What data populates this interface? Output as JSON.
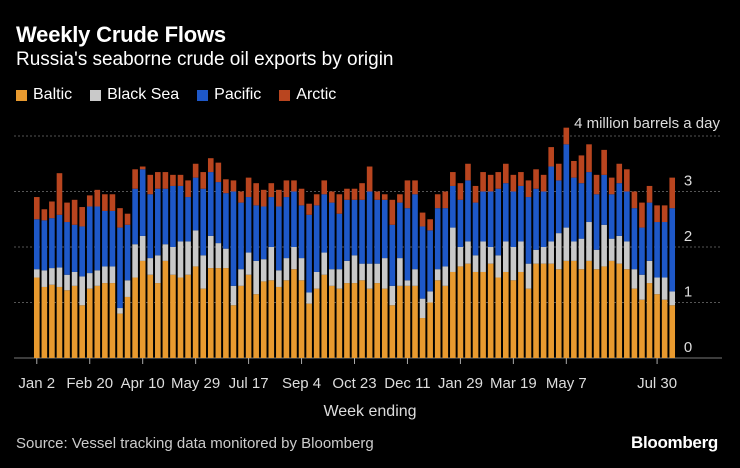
{
  "title": "Weekly Crude Flows",
  "subtitle": "Russia's seaborne crude oil exports by origin",
  "source": "Source: Vessel tracking data monitored by Bloomberg",
  "logo": "Bloomberg",
  "colors": {
    "background": "#000000",
    "Baltic": "#e89a2f",
    "Black Sea": "#c9c9c9",
    "Pacific": "#1e58c8",
    "Arctic": "#b9451f",
    "grid": "#555555"
  },
  "chart_data": {
    "type": "bar",
    "stacked": true,
    "xlabel": "Week ending",
    "ylabel": "",
    "y_unit_label": "4 million barrels a day",
    "ylim": [
      0,
      4
    ],
    "yticks": [
      0,
      1,
      2,
      3,
      4
    ],
    "ytick_labels": [
      "0",
      "1",
      "2",
      "3",
      ""
    ],
    "grid": true,
    "legend_placement": "top-left",
    "x_tick_labels": [
      {
        "index": 0,
        "label": "Jan 2"
      },
      {
        "index": 7,
        "label": "Feb 20"
      },
      {
        "index": 14,
        "label": "Apr 10"
      },
      {
        "index": 21,
        "label": "May 29"
      },
      {
        "index": 28,
        "label": "Jul 17"
      },
      {
        "index": 35,
        "label": "Sep 4"
      },
      {
        "index": 42,
        "label": "Oct 23"
      },
      {
        "index": 49,
        "label": "Dec 11"
      },
      {
        "index": 56,
        "label": "Jan 29"
      },
      {
        "index": 63,
        "label": "Mar 19"
      },
      {
        "index": 70,
        "label": "May 7"
      },
      {
        "index": 82,
        "label": "Jul 30"
      }
    ],
    "series": [
      {
        "name": "Baltic",
        "values": [
          1.45,
          1.28,
          1.32,
          1.28,
          1.22,
          1.3,
          0.95,
          1.25,
          1.3,
          1.35,
          1.35,
          0.8,
          1.1,
          1.45,
          1.75,
          1.5,
          1.35,
          1.75,
          1.5,
          1.45,
          1.5,
          1.65,
          1.25,
          1.62,
          1.62,
          1.62,
          0.95,
          1.3,
          1.5,
          1.15,
          1.38,
          1.4,
          1.28,
          1.4,
          1.6,
          1.4,
          0.98,
          1.25,
          1.5,
          1.3,
          1.25,
          1.35,
          1.35,
          1.4,
          1.25,
          1.35,
          1.25,
          0.95,
          1.3,
          1.3,
          1.3,
          0.72,
          1.0,
          1.4,
          1.3,
          1.55,
          1.65,
          1.7,
          1.55,
          1.55,
          1.7,
          1.45,
          1.55,
          1.4,
          1.55,
          1.25,
          1.7,
          1.7,
          1.7,
          1.6,
          1.75,
          1.75,
          1.6,
          1.75,
          1.6,
          1.65,
          1.75,
          1.7,
          1.6,
          1.25,
          1.05,
          1.35,
          1.15,
          1.05,
          0.95
        ],
        "ids": null
      },
      {
        "name": "Black Sea",
        "values": [
          0.15,
          0.3,
          0.3,
          0.35,
          0.28,
          0.25,
          0.52,
          0.28,
          0.28,
          0.3,
          0.3,
          0.1,
          0.3,
          0.6,
          0.45,
          0.3,
          0.5,
          0.3,
          0.5,
          0.65,
          0.6,
          0.65,
          0.6,
          0.58,
          0.45,
          0.35,
          0.35,
          0.3,
          0.4,
          0.6,
          0.4,
          0.6,
          0.3,
          0.4,
          0.4,
          0.4,
          0.2,
          0.3,
          0.4,
          0.3,
          0.35,
          0.4,
          0.5,
          0.3,
          0.45,
          0.35,
          0.55,
          0.35,
          0.5,
          0.1,
          0.3,
          0.35,
          0.2,
          0.2,
          0.35,
          0.8,
          0.35,
          0.4,
          0.3,
          0.55,
          0.3,
          0.4,
          0.55,
          0.6,
          0.55,
          0.45,
          0.25,
          0.3,
          0.4,
          0.65,
          0.6,
          0.35,
          0.55,
          0.7,
          0.35,
          0.75,
          0.4,
          0.5,
          0.5,
          0.35,
          0.45,
          0.4,
          0.3,
          0.4,
          0.25
        ],
        "ids": null
      },
      {
        "name": "Pacific",
        "values": [
          0.9,
          0.9,
          0.9,
          0.95,
          0.95,
          0.85,
          0.9,
          1.2,
          1.15,
          1.0,
          1.0,
          1.45,
          1.0,
          1.0,
          1.2,
          1.15,
          1.2,
          1.0,
          1.1,
          1.0,
          0.8,
          0.95,
          1.2,
          1.15,
          1.1,
          1.0,
          1.7,
          1.2,
          1.0,
          1.0,
          0.95,
          0.9,
          1.15,
          1.1,
          1.0,
          0.95,
          1.4,
          1.2,
          1.05,
          1.2,
          1.0,
          1.1,
          1.0,
          1.15,
          1.3,
          1.15,
          1.05,
          1.1,
          1.0,
          1.3,
          1.35,
          1.3,
          1.1,
          1.1,
          1.05,
          0.75,
          0.85,
          1.1,
          0.95,
          0.9,
          1.0,
          1.2,
          1.05,
          1.0,
          1.0,
          1.2,
          1.1,
          1.0,
          1.35,
          0.95,
          1.5,
          1.15,
          1.0,
          0.9,
          1.0,
          0.9,
          0.8,
          0.95,
          0.9,
          1.1,
          0.85,
          1.05,
          1.0,
          1.0,
          1.5
        ],
        "ids": null
      },
      {
        "name": "Arctic",
        "values": [
          0.4,
          0.2,
          0.3,
          0.75,
          0.35,
          0.45,
          0.35,
          0.2,
          0.3,
          0.3,
          0.3,
          0.35,
          0.2,
          0.35,
          0.05,
          0.35,
          0.3,
          0.3,
          0.2,
          0.2,
          0.3,
          0.25,
          0.3,
          0.25,
          0.35,
          0.25,
          0.2,
          0.2,
          0.35,
          0.4,
          0.3,
          0.25,
          0.3,
          0.3,
          0.2,
          0.3,
          0.2,
          0.2,
          0.25,
          0.2,
          0.35,
          0.2,
          0.2,
          0.3,
          0.45,
          0.15,
          0.1,
          0.45,
          0.15,
          0.5,
          0.25,
          0.25,
          0.2,
          0.25,
          0.3,
          0.25,
          0.3,
          0.3,
          0.3,
          0.35,
          0.3,
          0.3,
          0.35,
          0.3,
          0.25,
          0.3,
          0.35,
          0.3,
          0.35,
          0.3,
          0.3,
          0.3,
          0.5,
          0.5,
          0.35,
          0.45,
          0.3,
          0.35,
          0.4,
          0.3,
          0.45,
          0.3,
          0.3,
          0.3,
          0.55
        ],
        "ids": null
      }
    ]
  }
}
